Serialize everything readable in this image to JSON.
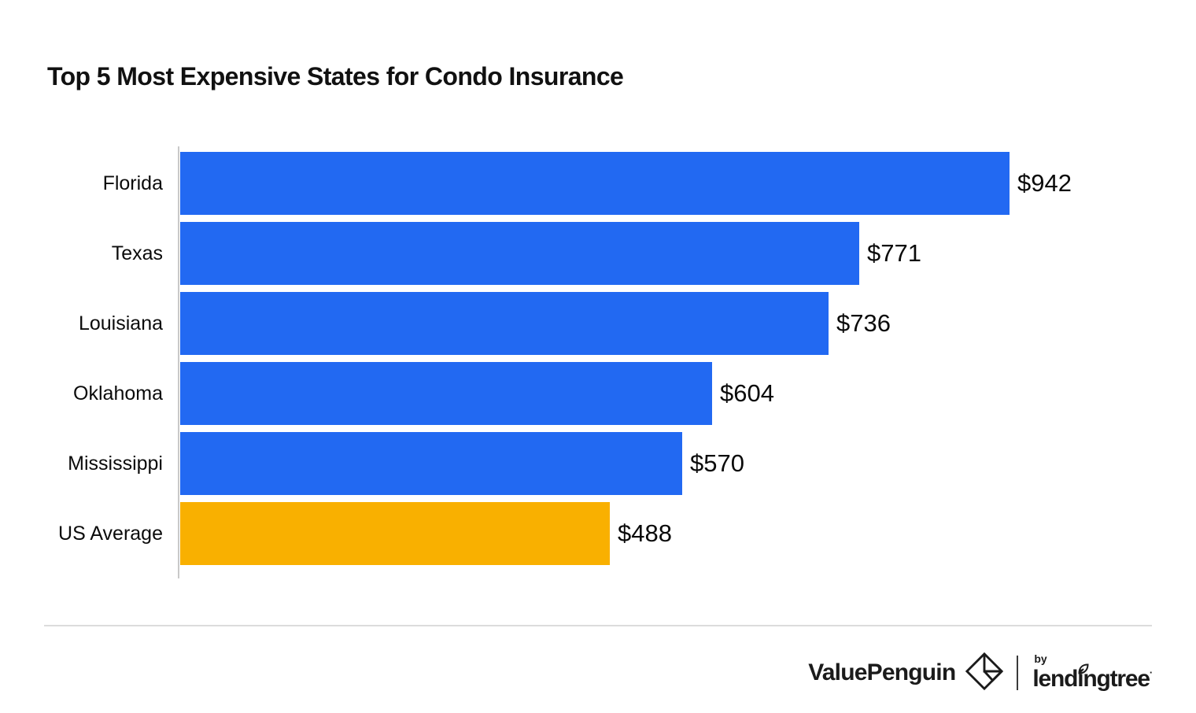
{
  "title": "Top 5 Most Expensive States for Condo Insurance",
  "chart_data": {
    "type": "bar",
    "orientation": "horizontal",
    "title": "Top 5 Most Expensive States for Condo Insurance",
    "categories": [
      "Florida",
      "Texas",
      "Louisiana",
      "Oklahoma",
      "Mississippi",
      "US Average"
    ],
    "values": [
      942,
      771,
      736,
      604,
      570,
      488
    ],
    "value_labels": [
      "$942",
      "$771",
      "$736",
      "$604",
      "$570",
      "$488"
    ],
    "bar_colors": [
      "#2269F2",
      "#2269F2",
      "#2269F2",
      "#2269F2",
      "#2269F2",
      "#F9B000"
    ],
    "highlight_category": "US Average",
    "xlim": [
      0,
      942
    ],
    "gridlines": false,
    "axis_tick_labels_visible": false,
    "value_label_position": "right-of-bar",
    "legend": "none"
  },
  "colors": {
    "bar_blue": "#2269F2",
    "bar_orange": "#F9B000",
    "axis_line": "#c9c9c9",
    "footer_divider": "#dcdcdc",
    "text": "#0b0b0b",
    "logo_ink": "#1b1b1b"
  },
  "footer": {
    "brand_wordmark": "ValuePenguin",
    "brand_mark_icon": "origami-penguin-diamond",
    "by_label": "by",
    "partner_wordmark": "lendingtree",
    "partner_leaf_icon": "leaf",
    "trademark_mark": "·"
  }
}
